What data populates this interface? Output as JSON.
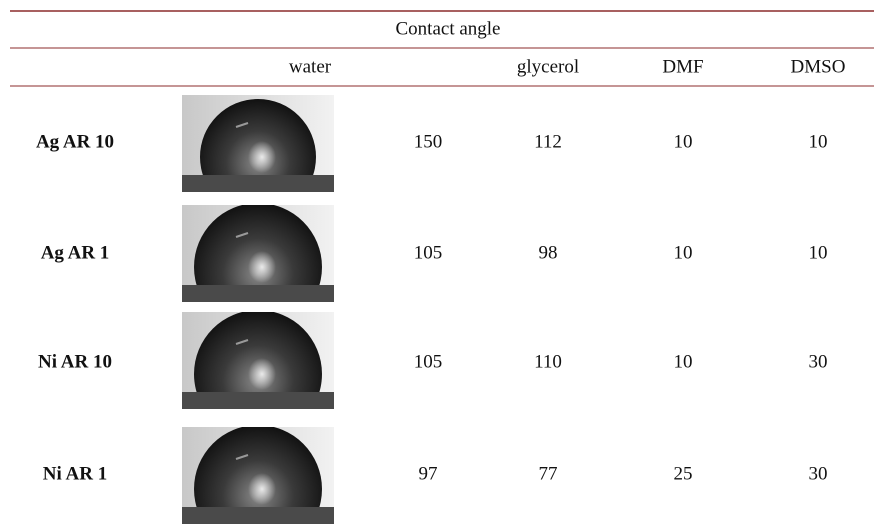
{
  "header": {
    "title": "Contact angle",
    "columns": [
      "water",
      "glycerol",
      "DMF",
      "DMSO"
    ]
  },
  "table": {
    "rows": [
      {
        "label": "Ag AR 10",
        "values": [
          "150",
          "112",
          "10",
          "10"
        ]
      },
      {
        "label": "Ag AR 1",
        "values": [
          "105",
          "98",
          "10",
          "10"
        ]
      },
      {
        "label": "Ni AR 10",
        "values": [
          "105",
          "110",
          "10",
          "30"
        ]
      },
      {
        "label": "Ni AR 1",
        "values": [
          "97",
          "77",
          "25",
          "30"
        ]
      }
    ]
  }
}
